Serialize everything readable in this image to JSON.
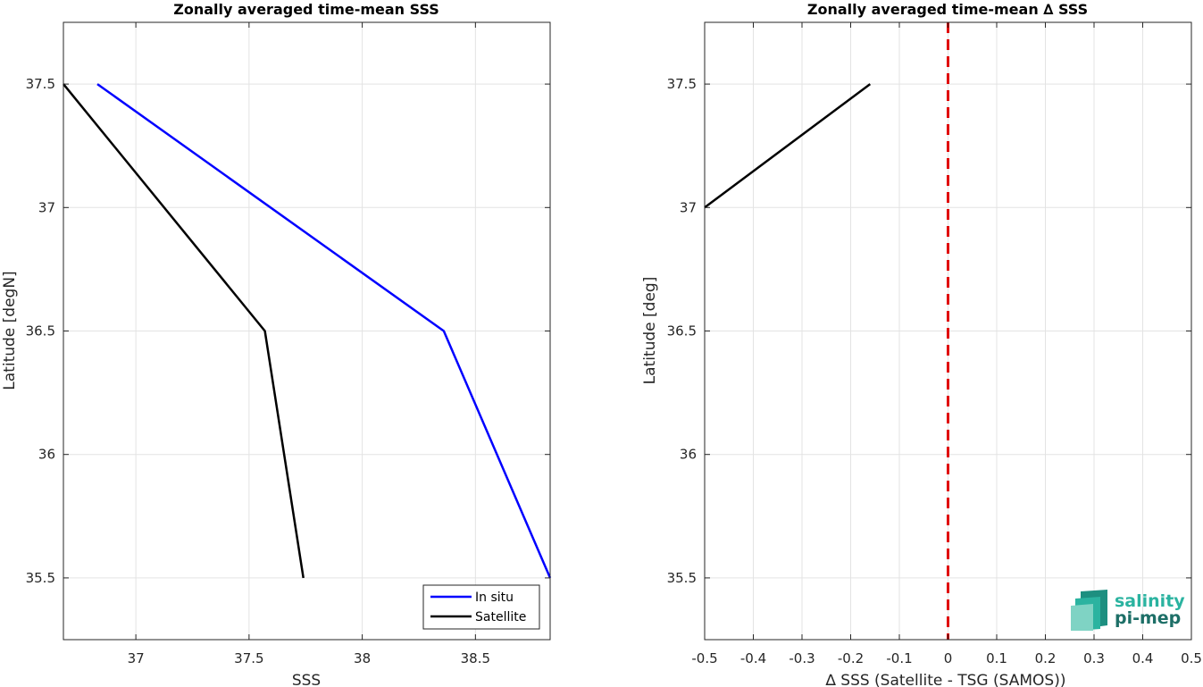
{
  "chart_data": [
    {
      "type": "line",
      "title": "Zonally averaged time-mean SSS",
      "xlabel": "SSS",
      "ylabel": "Latitude [degN]",
      "xlim": [
        36.68,
        38.83
      ],
      "ylim": [
        35.25,
        37.75
      ],
      "xticks": [
        37,
        37.5,
        38,
        38.5
      ],
      "xtick_labels": [
        "37",
        "37.5",
        "38",
        "38.5"
      ],
      "yticks": [
        35.5,
        36,
        36.5,
        37,
        37.5
      ],
      "ytick_labels": [
        "35.5",
        "36",
        "36.5",
        "37",
        "37.5"
      ],
      "grid": true,
      "legend_position": "bottom-right",
      "series": [
        {
          "name": "In situ",
          "color": "#0000ff",
          "x": [
            36.83,
            38.36,
            38.83
          ],
          "y": [
            37.5,
            36.5,
            35.5
          ]
        },
        {
          "name": "Satellite",
          "color": "#000000",
          "x": [
            36.68,
            37.57,
            37.74
          ],
          "y": [
            37.5,
            36.5,
            35.5
          ]
        }
      ]
    },
    {
      "type": "line",
      "title": "Zonally averaged time-mean ∆ SSS",
      "xlabel": "∆ SSS (Satellite - TSG (SAMOS))",
      "ylabel": "Latitude [deg]",
      "xlim": [
        -0.5,
        0.5
      ],
      "ylim": [
        35.25,
        37.75
      ],
      "xticks": [
        -0.5,
        -0.4,
        -0.3,
        -0.2,
        -0.1,
        0,
        0.1,
        0.2,
        0.3,
        0.4,
        0.5
      ],
      "xtick_labels": [
        "-0.5",
        "-0.4",
        "-0.3",
        "-0.2",
        "-0.1",
        "0",
        "0.1",
        "0.2",
        "0.3",
        "0.4",
        "0.5"
      ],
      "yticks": [
        35.5,
        36,
        36.5,
        37,
        37.5
      ],
      "ytick_labels": [
        "35.5",
        "36",
        "36.5",
        "37",
        "37.5"
      ],
      "grid": true,
      "series": [
        {
          "color": "#000000",
          "x": [
            -0.5,
            -0.16
          ],
          "y": [
            37.0,
            37.5
          ]
        }
      ],
      "reference_line": {
        "x": 0,
        "color": "#e00000",
        "style": "dashed"
      }
    }
  ],
  "logo": {
    "line1": "salinity",
    "line2": "pi-mep",
    "color1": "#2bb3a0",
    "color2": "#1d6f67"
  }
}
